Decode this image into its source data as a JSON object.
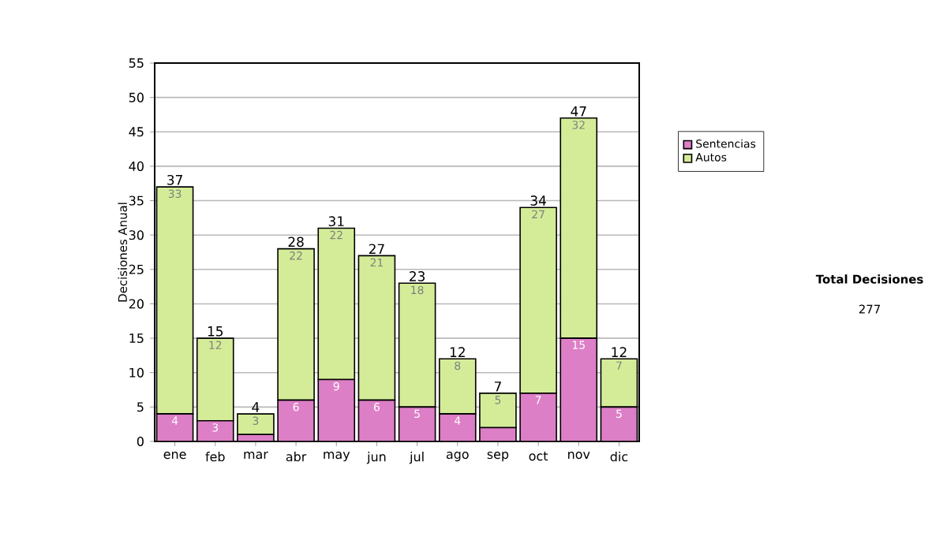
{
  "chart_data": {
    "type": "bar",
    "stacked": true,
    "ylabel": "Decisiones Anual",
    "categories": [
      "ene",
      "feb",
      "mar",
      "abr",
      "may",
      "jun",
      "jul",
      "ago",
      "sep",
      "oct",
      "nov",
      "dic"
    ],
    "series": [
      {
        "name": "Sentencias",
        "color": "#dd7fc6",
        "values": [
          4,
          3,
          1,
          6,
          9,
          6,
          5,
          4,
          2,
          7,
          15,
          5
        ],
        "value_labels": [
          "4",
          "3",
          null,
          "6",
          "9",
          "6",
          "5",
          "4",
          null,
          "7",
          "15",
          "5"
        ]
      },
      {
        "name": "Autos",
        "color": "#d4ec98",
        "values": [
          33,
          12,
          3,
          22,
          22,
          21,
          18,
          8,
          5,
          27,
          32,
          7
        ],
        "value_labels": [
          "33",
          "12",
          "3",
          "22",
          "22",
          "21",
          "18",
          "8",
          "5",
          "27",
          "32",
          "7"
        ]
      }
    ],
    "totals": [
      "37",
      "15",
      "4",
      "28",
      "31",
      "27",
      "23",
      "12",
      "7",
      "34",
      "47",
      "12"
    ],
    "ylim": [
      0,
      55
    ],
    "yticks": [
      0,
      5,
      10,
      15,
      20,
      25,
      30,
      35,
      40,
      45,
      50,
      55
    ],
    "grid": "y",
    "legend": "right",
    "annotations": [
      "Total Decisiones",
      "277"
    ]
  }
}
